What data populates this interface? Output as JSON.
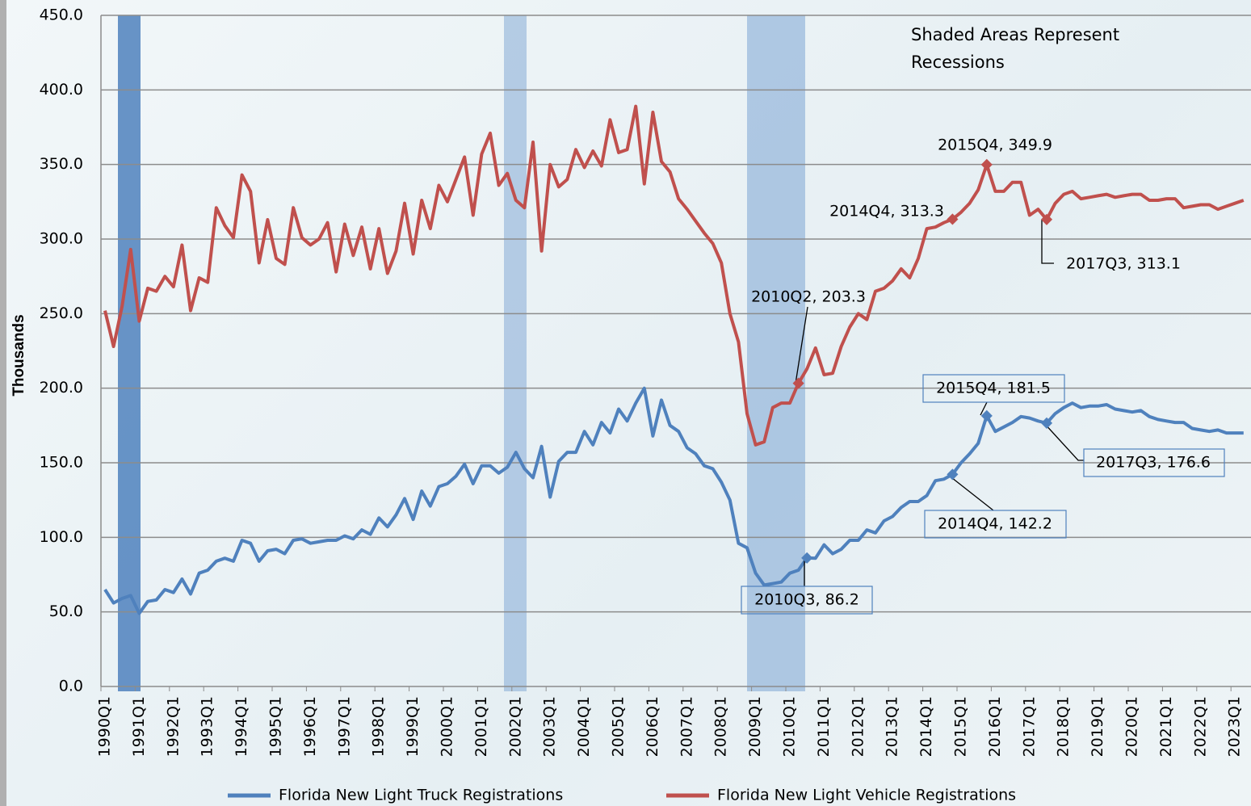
{
  "chart_data": {
    "type": "line",
    "y_label": "Thousands",
    "note": "Shaded Areas Represent Recessions",
    "categories": [
      "1990Q1",
      null,
      null,
      null,
      "1991Q1",
      null,
      null,
      null,
      "1992Q1",
      null,
      null,
      null,
      "1993Q1",
      null,
      null,
      null,
      "1994Q1",
      null,
      null,
      null,
      "1995Q1",
      null,
      null,
      null,
      "1996Q1",
      null,
      null,
      null,
      "1997Q1",
      null,
      null,
      null,
      "1998Q1",
      null,
      null,
      null,
      "1999Q1",
      null,
      null,
      null,
      "2000Q1",
      null,
      null,
      null,
      "2001Q1",
      null,
      null,
      null,
      "2002Q1",
      null,
      null,
      null,
      "2003Q1",
      null,
      null,
      null,
      "2004Q1",
      null,
      null,
      null,
      "2005Q1",
      null,
      null,
      null,
      "2006Q1",
      null,
      null,
      null,
      "2007Q1",
      null,
      null,
      null,
      "2008Q1",
      null,
      null,
      null,
      "2009Q1",
      null,
      null,
      null,
      "2010Q1",
      null,
      null,
      null,
      "2011Q1",
      null,
      null,
      null,
      "2012Q1",
      null,
      null,
      null,
      "2013Q1",
      null,
      null,
      null,
      "2014Q1",
      null,
      null,
      null,
      "2015Q1",
      null,
      null,
      null,
      "2016Q1",
      null,
      null,
      null,
      "2017Q1",
      null,
      null,
      null,
      "2018Q1",
      null,
      null,
      null,
      "2019Q1",
      null,
      null,
      null,
      "2020Q1",
      null,
      null,
      null,
      "2021Q1",
      null,
      null,
      null,
      "2022Q1",
      null,
      null,
      null,
      "2023Q1",
      null
    ],
    "series": [
      {
        "name": "Florida New Light Truck Registrations",
        "color": "#4f81bd",
        "values": [
          65,
          56,
          59,
          61,
          49,
          57,
          58,
          65,
          63,
          72,
          62,
          76,
          78,
          84,
          86,
          84,
          98,
          96,
          84,
          91,
          92,
          89,
          98,
          99,
          96,
          97,
          98,
          98,
          101,
          99,
          105,
          102,
          113,
          107,
          115,
          126,
          112,
          131,
          121,
          134,
          136,
          141,
          149,
          136,
          148,
          148,
          143,
          147,
          157,
          146,
          140,
          161,
          127,
          151,
          157,
          157,
          171,
          162,
          177,
          170,
          186,
          178,
          190,
          200,
          168,
          192,
          175,
          171,
          160,
          156,
          148,
          146,
          137,
          125,
          96,
          93,
          76,
          68,
          69,
          70,
          76,
          78,
          86.2,
          86,
          95,
          89,
          92,
          98,
          98,
          105,
          103,
          111,
          114,
          120,
          124,
          124,
          128,
          138,
          139,
          142.2,
          150,
          156,
          163,
          181.5,
          171,
          174,
          177,
          181,
          180,
          178,
          176.6,
          183,
          187,
          190,
          187,
          188,
          188,
          189,
          186,
          185,
          184,
          185,
          181,
          179,
          178,
          177,
          177,
          173,
          172,
          171,
          172,
          170,
          170,
          170
        ]
      },
      {
        "name": "Florida New Light Vehicle Registrations",
        "color": "#c0504d",
        "values": [
          252,
          228,
          255,
          293,
          245,
          267,
          265,
          275,
          268,
          296,
          252,
          274,
          271,
          321,
          309,
          301,
          343,
          332,
          284,
          313,
          287,
          283,
          321,
          301,
          296,
          300,
          311,
          278,
          310,
          289,
          308,
          280,
          307,
          277,
          292,
          324,
          290,
          326,
          307,
          336,
          325,
          340,
          355,
          316,
          357,
          371,
          336,
          344,
          326,
          321,
          365,
          292,
          350,
          335,
          340,
          360,
          348,
          359,
          349,
          380,
          358,
          360,
          389,
          337,
          385,
          352,
          345,
          327,
          320,
          312,
          304,
          297,
          284,
          250,
          231,
          183,
          162,
          164,
          187,
          190,
          190,
          203.3,
          213,
          227,
          209,
          210,
          228,
          241,
          250,
          246,
          265,
          267,
          272,
          280,
          274,
          287,
          307,
          308,
          311,
          313.3,
          318,
          324,
          333,
          349.9,
          332,
          332,
          338,
          338,
          316,
          320,
          313.1,
          324,
          330,
          332,
          327,
          328,
          329,
          330,
          328,
          329,
          330,
          330,
          326,
          326,
          327,
          327,
          321,
          322,
          323,
          323,
          320,
          322,
          324,
          326
        ]
      }
    ],
    "annotations": [
      "2015Q4, 349.9",
      "2014Q4, 313.3",
      "2017Q3, 313.1",
      "2010Q2, 203.3",
      "2015Q4, 181.5",
      "2017Q3, 176.6",
      "2014Q4, 142.2",
      "2010Q3, 86.2"
    ],
    "ylim": [
      0,
      450
    ],
    "yticks": [
      {
        "value": 0,
        "label": "0.0"
      },
      {
        "value": 50,
        "label": "50.0"
      },
      {
        "value": 100,
        "label": "100.0"
      },
      {
        "value": 150,
        "label": "150.0"
      },
      {
        "value": 200,
        "label": "200.0"
      },
      {
        "value": 250,
        "label": "250.0"
      },
      {
        "value": 300,
        "label": "300.0"
      },
      {
        "value": 350,
        "label": "350.0"
      },
      {
        "value": 400,
        "label": "400.0"
      },
      {
        "value": 450,
        "label": "450.0"
      }
    ],
    "grid": true
  }
}
